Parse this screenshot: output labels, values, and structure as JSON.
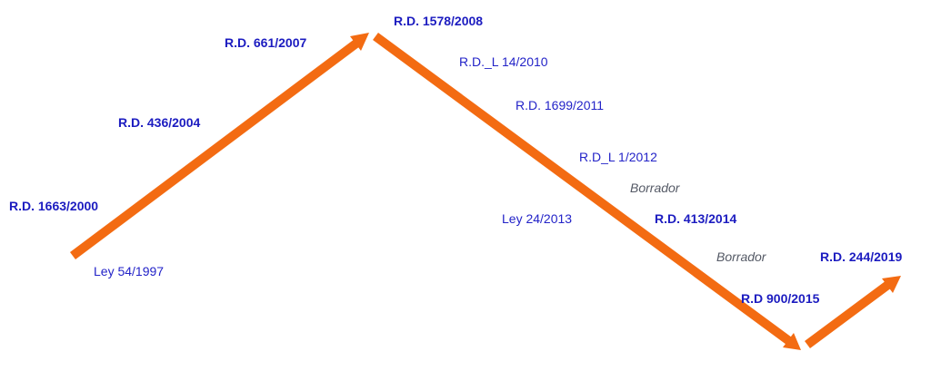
{
  "labels": [
    "R.D. 1578/2008",
    "R.D. 661/2007",
    "R.D._L 14/2010",
    "R.D. 1699/2011",
    "R.D. 436/2004",
    "R.D_L 1/2012",
    "Borrador",
    "R.D. 1663/2000",
    "Ley 24/2013",
    "R.D. 413/2014",
    "Borrador",
    "R.D. 244/2019",
    "Ley 54/1997",
    "R.D 900/2015"
  ]
}
